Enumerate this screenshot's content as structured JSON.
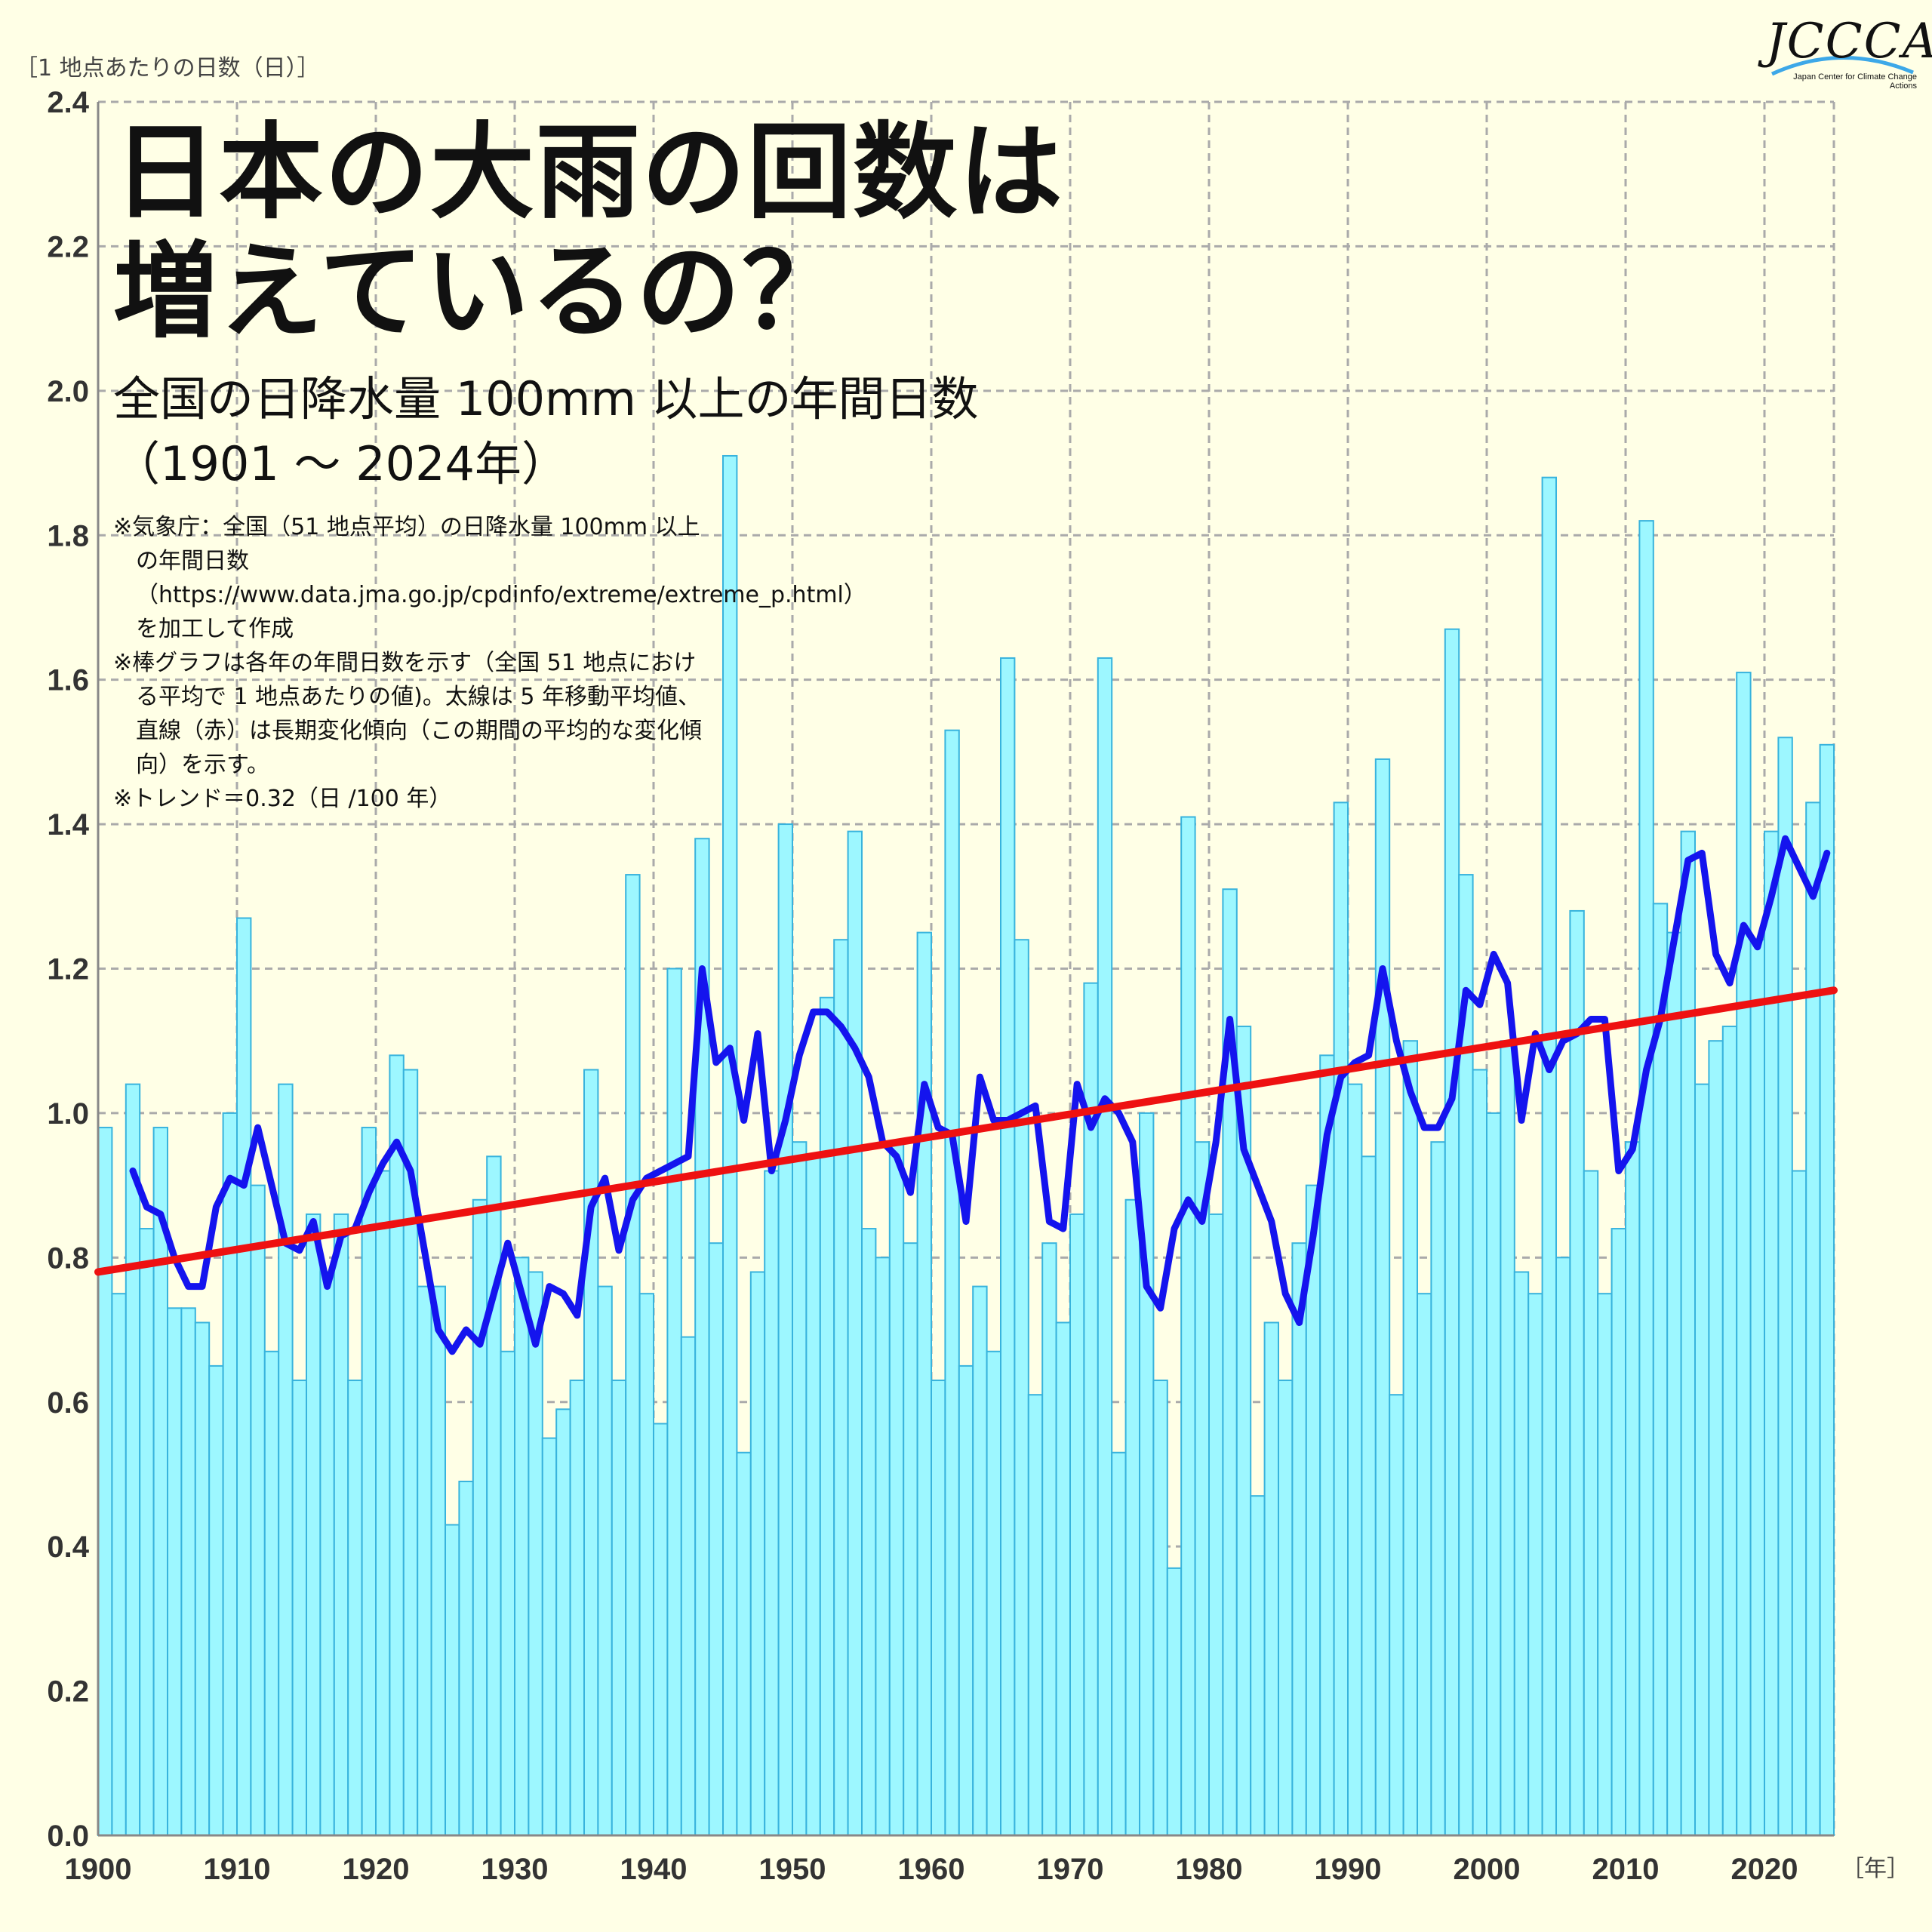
{
  "title_line1": "日本の大雨の回数は",
  "title_line2": "増えているの？",
  "subtitle_line1": "全国の日降水量 100mm 以上の年間日数",
  "subtitle_line2": "（1901 ～ 2024年）",
  "notes": [
    "※気象庁：全国（51 地点平均）の日降水量 100mm 以上の年間日数（https://www.data.jma.go.jp/cpdinfo/extreme/extreme_p.html）を加工して作成",
    "※棒グラフは各年の年間日数を示す（全国 51 地点における平均で 1 地点あたりの値)。太線は 5 年移動平均値、直線（赤）は長期変化傾向（この期間の平均的な変化傾向）を示す。",
    "※トレンド＝0.32（日 /100 年）"
  ],
  "logo": {
    "text": "JCCCA",
    "subtitle": "Japan Center for Climate Change Actions"
  },
  "colors": {
    "bar_fill": "#9df7ff",
    "bar_stroke": "#38b3dd",
    "moving_avg": "#1414ee",
    "trend": "#ee1111",
    "grid": "#aaaaaa",
    "background": "#ffffe6"
  },
  "chart_data": {
    "type": "bar",
    "ylabel": "［1 地点あたりの日数（日）］",
    "xlabel": "［年］",
    "ylim": [
      0,
      2.4
    ],
    "xlim": [
      1900,
      2025
    ],
    "y_ticks": [
      "0.0",
      "0.2",
      "0.4",
      "0.6",
      "0.8",
      "1.0",
      "1.2",
      "1.4",
      "1.6",
      "1.8",
      "2.0",
      "2.2",
      "2.4"
    ],
    "x_ticks": [
      "1900",
      "1910",
      "1920",
      "1930",
      "1940",
      "1950",
      "1960",
      "1970",
      "1980",
      "1990",
      "2000",
      "2010",
      "2020"
    ],
    "grid": true,
    "years_start": 1901,
    "values": [
      0.98,
      0.75,
      1.04,
      0.84,
      0.98,
      0.73,
      0.73,
      0.71,
      0.65,
      1.0,
      1.27,
      0.9,
      0.67,
      1.04,
      0.63,
      0.86,
      0.78,
      0.86,
      0.63,
      0.98,
      0.92,
      1.08,
      1.06,
      0.76,
      0.76,
      0.43,
      0.49,
      0.88,
      0.94,
      0.67,
      0.8,
      0.78,
      0.55,
      0.59,
      0.63,
      1.06,
      0.76,
      0.63,
      1.33,
      0.75,
      0.57,
      1.2,
      0.69,
      1.38,
      0.82,
      1.91,
      0.53,
      0.78,
      0.92,
      1.4,
      0.96,
      0.94,
      1.16,
      1.24,
      1.39,
      0.84,
      0.8,
      0.96,
      0.82,
      1.25,
      0.63,
      1.53,
      0.65,
      0.76,
      0.67,
      1.63,
      1.24,
      0.61,
      0.82,
      0.71,
      0.86,
      1.18,
      1.63,
      0.53,
      0.88,
      1.0,
      0.63,
      0.37,
      1.41,
      0.96,
      0.86,
      1.31,
      1.12,
      0.47,
      0.71,
      0.63,
      0.82,
      0.9,
      1.08,
      1.43,
      1.04,
      0.94,
      1.49,
      0.61,
      1.1,
      0.75,
      0.96,
      1.67,
      1.33,
      1.06,
      1.0,
      1.1,
      0.78,
      0.75,
      1.88,
      0.8,
      1.28,
      0.92,
      0.75,
      0.84,
      0.96,
      1.82,
      1.29,
      1.25,
      1.39,
      1.04,
      1.1,
      1.12,
      1.61,
      1.24,
      1.39,
      1.52,
      0.92,
      1.43,
      1.51
    ],
    "moving_average": {
      "name": "5 年移動平均値",
      "start_year": 1903,
      "values": [
        0.92,
        0.87,
        0.86,
        0.8,
        0.76,
        0.76,
        0.87,
        0.91,
        0.9,
        0.98,
        0.9,
        0.82,
        0.81,
        0.85,
        0.76,
        0.83,
        0.84,
        0.89,
        0.93,
        0.96,
        0.92,
        0.81,
        0.7,
        0.67,
        0.7,
        0.68,
        0.75,
        0.82,
        0.75,
        0.68,
        0.76,
        0.75,
        0.72,
        0.87,
        0.91,
        0.81,
        0.88,
        0.91,
        0.92,
        0.93,
        0.94,
        1.2,
        1.07,
        1.09,
        0.99,
        1.11,
        0.92,
        0.99,
        1.08,
        1.14,
        1.14,
        1.12,
        1.09,
        1.05,
        0.96,
        0.94,
        0.89,
        1.04,
        0.98,
        0.97,
        0.85,
        1.05,
        0.99,
        0.99,
        1.0,
        1.01,
        0.85,
        0.84,
        1.04,
        0.98,
        1.02,
        1.0,
        0.96,
        0.76,
        0.73,
        0.84,
        0.88,
        0.85,
        0.96,
        1.13,
        0.95,
        0.9,
        0.85,
        0.75,
        0.71,
        0.83,
        0.97,
        1.05,
        1.07,
        1.08,
        1.2,
        1.1,
        1.03,
        0.98,
        0.98,
        1.02,
        1.17,
        1.15,
        1.22,
        1.18,
        0.99,
        1.11,
        1.06,
        1.1,
        1.11,
        1.13,
        1.13,
        0.92,
        0.95,
        1.06,
        1.13,
        1.24,
        1.35,
        1.36,
        1.22,
        1.18,
        1.26,
        1.23,
        1.3,
        1.38,
        1.34,
        1.3,
        1.36
      ]
    },
    "trend": {
      "name": "長期変化傾向",
      "start": [
        1900,
        0.78
      ],
      "end": [
        2025,
        1.17
      ]
    }
  }
}
